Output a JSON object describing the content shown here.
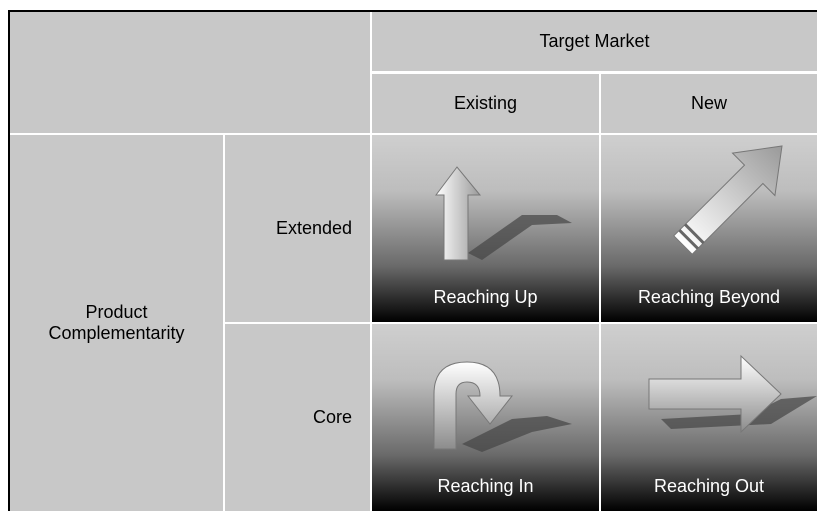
{
  "header": {
    "title": "Target Market",
    "columns": [
      "Existing",
      "New"
    ]
  },
  "rows": {
    "title": "Product Complementarity",
    "labels": [
      "Extended",
      "Core"
    ]
  },
  "cells": [
    [
      "Reaching Up",
      "Reaching Beyond"
    ],
    [
      "Reaching In",
      "Reaching Out"
    ]
  ]
}
